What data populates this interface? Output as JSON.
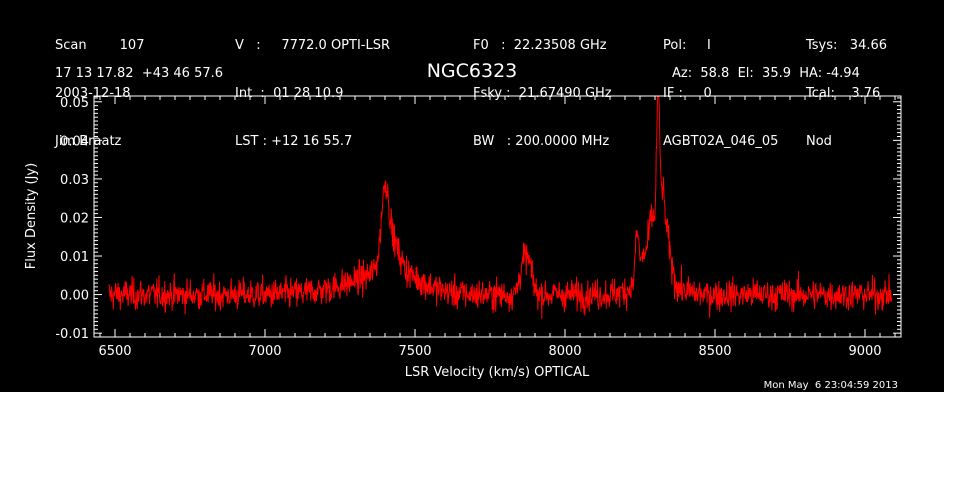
{
  "header": {
    "col1": [
      "Scan        107",
      "2003-12-18",
      "Jim Braatz"
    ],
    "col2": [
      "V   :     7772.0 OPTI-LSR",
      "Int  :  01 28 10.9",
      "LST : +12 16 55.7"
    ],
    "col3": [
      "F0   :  22.23508 GHz",
      "Fsky :  21.67490 GHz",
      "BW   : 200.0000 MHz"
    ],
    "col4": [
      "Pol:     I",
      "IF :     0",
      "AGBT02A_046_05"
    ],
    "col5": [
      "Tsys:   34.66",
      "Tcal:    3.76",
      "Nod"
    ],
    "coords": "17 13 17.82  +43 46 57.6",
    "azelha": "Az:  58.8  El:  35.9  HA: -4.94"
  },
  "timestamp": "Mon May  6 23:04:59 2013",
  "chart_data": {
    "type": "line",
    "title": "NGC6323",
    "xlabel": "LSR Velocity (km/s) OPTICAL",
    "ylabel": "Flux Density (Jy)",
    "xlim": [
      6430,
      9120
    ],
    "ylim": [
      -0.011,
      0.0515
    ],
    "x_ticks": [
      6500,
      7000,
      7500,
      8000,
      8500,
      9000
    ],
    "x_tick_labels": [
      "6500",
      "7000",
      "7500",
      "8000",
      "8500",
      "9000"
    ],
    "y_ticks": [
      -0.01,
      0.0,
      0.01,
      0.02,
      0.03,
      0.04,
      0.05
    ],
    "y_tick_labels": [
      "-0.01",
      "0.00",
      "0.01",
      "0.02",
      "0.03",
      "0.04",
      "0.05"
    ],
    "line_color": "#ff0000",
    "series": [
      {
        "data_range": [
          6480,
          9090
        ],
        "noise_rms": 0.0025,
        "features": [
          {
            "center": 7400,
            "width": 12,
            "peak": 0.017
          },
          {
            "center": 7420,
            "width": 25,
            "peak": 0.008
          },
          {
            "center": 7440,
            "width": 80,
            "peak": 0.004
          },
          {
            "center": 7350,
            "width": 120,
            "peak": 0.003
          },
          {
            "center": 7860,
            "width": 12,
            "peak": 0.007
          },
          {
            "center": 7880,
            "width": 12,
            "peak": 0.007
          },
          {
            "center": 8240,
            "width": 6,
            "peak": 0.013
          },
          {
            "center": 8260,
            "width": 10,
            "peak": 0.006
          },
          {
            "center": 8290,
            "width": 12,
            "peak": 0.016
          },
          {
            "center": 8310,
            "width": 5,
            "peak": 0.036
          },
          {
            "center": 8322,
            "width": 10,
            "peak": 0.018
          },
          {
            "center": 8340,
            "width": 14,
            "peak": 0.01
          },
          {
            "center": 8300,
            "width": 60,
            "peak": 0.004
          }
        ]
      }
    ]
  }
}
